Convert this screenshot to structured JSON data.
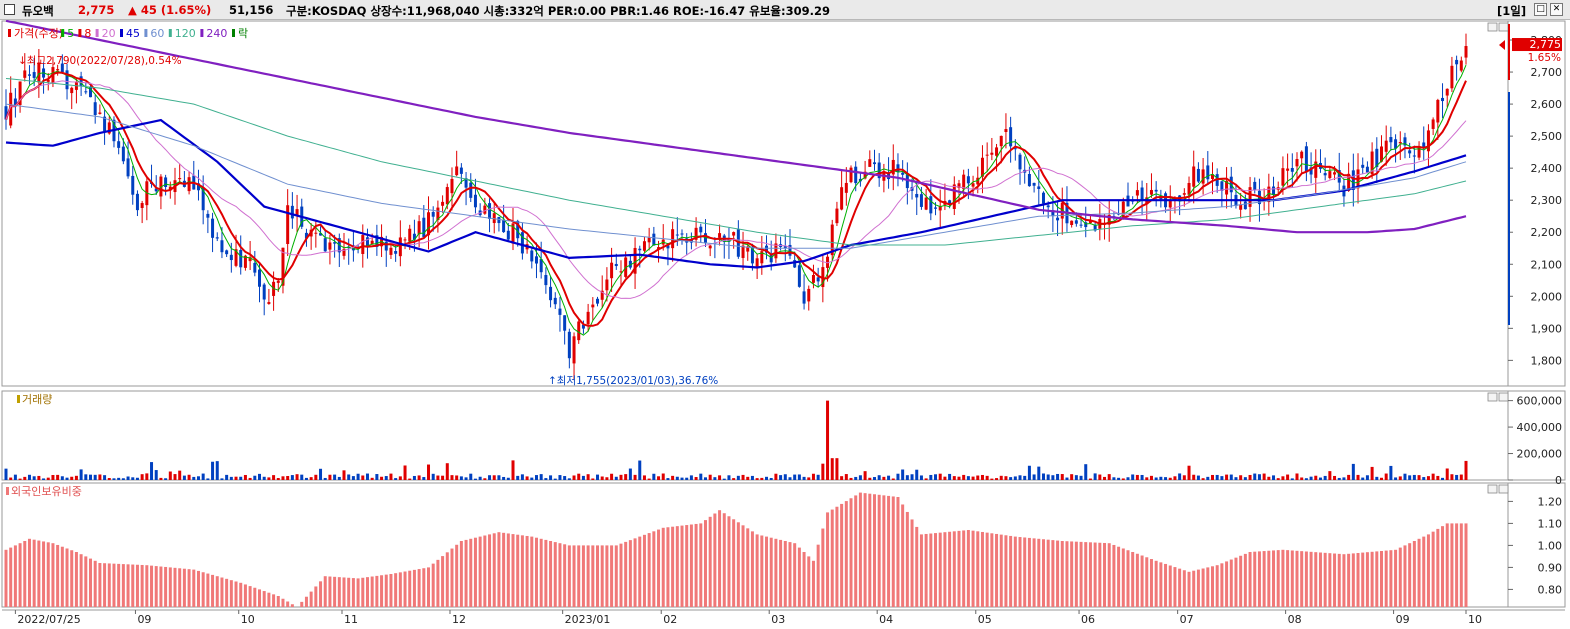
{
  "header": {
    "name": "듀오백",
    "price": "2,775",
    "change": "▲ 45 (1.65%)",
    "volume": "51,156",
    "info": "구분:KOSDAQ 상장수:11,968,040 시총:332억 PER:0.00 PBR:1.46 ROE:-16.47 유보율:309.29",
    "period": "[1일]",
    "colors": {
      "up": "#e00000",
      "down": "#0040c0"
    }
  },
  "price_panel": {
    "legend": [
      "가격(수정)",
      "5",
      "8",
      "20",
      "45",
      "60",
      "120",
      "240",
      "락"
    ],
    "legend_colors": [
      "#e00000",
      "#00b000",
      "#e00000",
      "#d070d0",
      "#0000cc",
      "#7090d0",
      "#40b090",
      "#8020c0",
      "#008000"
    ],
    "high_note": "최고2,790(2022/07/28),0.54%",
    "low_note": "최저1,755(2023/01/03),36.76%",
    "current_tag": "2,775",
    "current_pct": "1.65%"
  },
  "volume_panel": {
    "legend": "거래량"
  },
  "foreign_panel": {
    "legend": "외국인보유비중"
  },
  "x_axis_labels": [
    "2022/07/25",
    "09",
    "10",
    "11",
    "12",
    "2023/01",
    "02",
    "03",
    "04",
    "05",
    "06",
    "07",
    "08",
    "09",
    "10"
  ],
  "chart_data": [
    {
      "type": "candlestick",
      "title": "가격(수정)",
      "ylim": [
        1720,
        2850
      ],
      "y_ticks": [
        "2,800",
        "2,700",
        "2,600",
        "2,500",
        "2,400",
        "2,300",
        "2,200",
        "2,100",
        "2,000",
        "1,900",
        "1,800"
      ],
      "y_tick_values": [
        2800,
        2700,
        2600,
        2500,
        2400,
        2300,
        2200,
        2100,
        2000,
        1900,
        1800
      ],
      "approx_close_path": [
        [
          0,
          2580
        ],
        [
          5,
          2700
        ],
        [
          10,
          2690
        ],
        [
          15,
          2640
        ],
        [
          20,
          2560
        ],
        [
          25,
          2430
        ],
        [
          28,
          2300
        ],
        [
          33,
          2370
        ],
        [
          40,
          2340
        ],
        [
          45,
          2160
        ],
        [
          52,
          2110
        ],
        [
          55,
          1960
        ],
        [
          58,
          2060
        ],
        [
          60,
          2300
        ],
        [
          65,
          2180
        ],
        [
          72,
          2120
        ],
        [
          78,
          2190
        ],
        [
          83,
          2160
        ],
        [
          88,
          2200
        ],
        [
          93,
          2290
        ],
        [
          96,
          2380
        ],
        [
          100,
          2280
        ],
        [
          103,
          2240
        ],
        [
          108,
          2200
        ],
        [
          112,
          2130
        ],
        [
          116,
          2020
        ],
        [
          120,
          1830
        ],
        [
          124,
          1960
        ],
        [
          128,
          2060
        ],
        [
          135,
          2150
        ],
        [
          145,
          2200
        ],
        [
          155,
          2170
        ],
        [
          160,
          2100
        ],
        [
          165,
          2160
        ],
        [
          170,
          2000
        ],
        [
          174,
          2080
        ],
        [
          178,
          2350
        ],
        [
          183,
          2400
        ],
        [
          190,
          2390
        ],
        [
          197,
          2280
        ],
        [
          200,
          2310
        ],
        [
          207,
          2380
        ],
        [
          213,
          2490
        ],
        [
          218,
          2330
        ],
        [
          225,
          2260
        ],
        [
          232,
          2240
        ],
        [
          240,
          2310
        ],
        [
          247,
          2290
        ],
        [
          255,
          2400
        ],
        [
          262,
          2300
        ],
        [
          268,
          2320
        ],
        [
          276,
          2420
        ],
        [
          285,
          2340
        ],
        [
          295,
          2470
        ],
        [
          300,
          2420
        ],
        [
          305,
          2600
        ],
        [
          311,
          2775
        ]
      ],
      "ma": [
        {
          "name": "5",
          "color": "#00b000"
        },
        {
          "name": "20",
          "color": "#d070d0"
        },
        {
          "name": "45",
          "color": "#0000cc",
          "approx": [
            [
              0,
              2480
            ],
            [
              10,
              2470
            ],
            [
              20,
              2510
            ],
            [
              33,
              2550
            ],
            [
              45,
              2420
            ],
            [
              55,
              2280
            ],
            [
              65,
              2240
            ],
            [
              75,
              2200
            ],
            [
              90,
              2140
            ],
            [
              100,
              2200
            ],
            [
              110,
              2160
            ],
            [
              120,
              2120
            ],
            [
              135,
              2130
            ],
            [
              150,
              2100
            ],
            [
              160,
              2090
            ],
            [
              170,
              2110
            ],
            [
              180,
              2160
            ],
            [
              195,
              2200
            ],
            [
              210,
              2250
            ],
            [
              225,
              2300
            ],
            [
              240,
              2300
            ],
            [
              255,
              2300
            ],
            [
              270,
              2300
            ],
            [
              285,
              2330
            ],
            [
              300,
              2390
            ],
            [
              311,
              2440
            ]
          ]
        },
        {
          "name": "60",
          "color": "#7090d0",
          "approx": [
            [
              0,
              2600
            ],
            [
              20,
              2560
            ],
            [
              40,
              2470
            ],
            [
              60,
              2350
            ],
            [
              80,
              2290
            ],
            [
              100,
              2250
            ],
            [
              120,
              2210
            ],
            [
              140,
              2180
            ],
            [
              160,
              2150
            ],
            [
              180,
              2150
            ],
            [
              200,
              2200
            ],
            [
              220,
              2250
            ],
            [
              240,
              2260
            ],
            [
              260,
              2280
            ],
            [
              280,
              2320
            ],
            [
              300,
              2370
            ],
            [
              311,
              2420
            ]
          ]
        },
        {
          "name": "120",
          "color": "#40b090",
          "approx": [
            [
              0,
              2680
            ],
            [
              20,
              2650
            ],
            [
              40,
              2600
            ],
            [
              60,
              2500
            ],
            [
              80,
              2420
            ],
            [
              100,
              2360
            ],
            [
              120,
              2300
            ],
            [
              140,
              2250
            ],
            [
              160,
              2200
            ],
            [
              180,
              2160
            ],
            [
              200,
              2160
            ],
            [
              220,
              2190
            ],
            [
              240,
              2220
            ],
            [
              260,
              2240
            ],
            [
              280,
              2280
            ],
            [
              300,
              2320
            ],
            [
              311,
              2360
            ]
          ]
        },
        {
          "name": "240",
          "color": "#8020c0",
          "approx": [
            [
              0,
              2860
            ],
            [
              20,
              2800
            ],
            [
              40,
              2740
            ],
            [
              60,
              2680
            ],
            [
              80,
              2620
            ],
            [
              100,
              2560
            ],
            [
              120,
              2510
            ],
            [
              140,
              2470
            ],
            [
              160,
              2430
            ],
            [
              175,
              2400
            ],
            [
              190,
              2370
            ],
            [
              205,
              2320
            ],
            [
              220,
              2270
            ],
            [
              240,
              2240
            ],
            [
              260,
              2220
            ],
            [
              275,
              2200
            ],
            [
              290,
              2200
            ],
            [
              300,
              2210
            ],
            [
              311,
              2250
            ]
          ]
        }
      ]
    },
    {
      "type": "bar",
      "title": "거래량",
      "ylim": [
        0,
        650000
      ],
      "y_ticks": [
        "600,000",
        "400,000",
        "200,000",
        "0"
      ],
      "y_tick_values": [
        600000,
        400000,
        200000,
        0
      ],
      "notable": [
        {
          "x": "2023/03",
          "value": 600000
        }
      ]
    },
    {
      "type": "bar",
      "title": "외국인보유비중",
      "ylim": [
        0.72,
        1.27
      ],
      "y_ticks": [
        "1.20",
        "1.10",
        "1.00",
        "0.90",
        "0.80"
      ],
      "y_tick_values": [
        1.2,
        1.1,
        1.0,
        0.9,
        0.8
      ],
      "approx": [
        [
          0,
          0.98
        ],
        [
          5,
          1.03
        ],
        [
          10,
          1.01
        ],
        [
          15,
          0.97
        ],
        [
          20,
          0.92
        ],
        [
          30,
          0.91
        ],
        [
          40,
          0.89
        ],
        [
          50,
          0.83
        ],
        [
          58,
          0.77
        ],
        [
          62,
          0.72
        ],
        [
          68,
          0.86
        ],
        [
          75,
          0.85
        ],
        [
          82,
          0.87
        ],
        [
          90,
          0.9
        ],
        [
          97,
          1.02
        ],
        [
          105,
          1.06
        ],
        [
          112,
          1.04
        ],
        [
          120,
          1.0
        ],
        [
          130,
          1.0
        ],
        [
          140,
          1.08
        ],
        [
          148,
          1.1
        ],
        [
          152,
          1.16
        ],
        [
          160,
          1.05
        ],
        [
          168,
          1.01
        ],
        [
          172,
          0.93
        ],
        [
          175,
          1.15
        ],
        [
          182,
          1.24
        ],
        [
          190,
          1.22
        ],
        [
          195,
          1.05
        ],
        [
          205,
          1.07
        ],
        [
          215,
          1.04
        ],
        [
          225,
          1.02
        ],
        [
          235,
          1.01
        ],
        [
          245,
          0.93
        ],
        [
          252,
          0.88
        ],
        [
          258,
          0.91
        ],
        [
          265,
          0.97
        ],
        [
          272,
          0.98
        ],
        [
          285,
          0.96
        ],
        [
          296,
          0.98
        ],
        [
          303,
          1.05
        ],
        [
          307,
          1.1
        ],
        [
          311,
          1.1
        ]
      ]
    }
  ]
}
